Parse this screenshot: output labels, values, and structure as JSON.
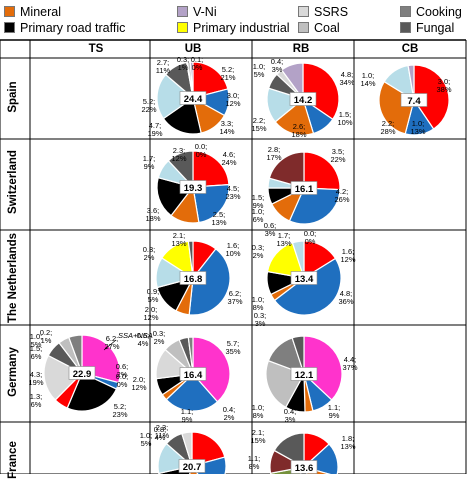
{
  "legend": [
    {
      "label": "Mineral",
      "color": "#e36c0a"
    },
    {
      "label": "V-Ni",
      "color": "#b3a2c7"
    },
    {
      "label": "SSRS",
      "color": "#d9d9d9"
    },
    {
      "label": "Cooking",
      "color": "#7f7f7f"
    },
    {
      "label": "Primary road traffic",
      "color": "#000000"
    },
    {
      "label": "Primary industrial",
      "color": "#ffff00"
    },
    {
      "label": "Coal",
      "color": "#bfbfbf"
    },
    {
      "label": "Fungal",
      "color": "#595959"
    }
  ],
  "columns": [
    "TS",
    "UB",
    "RB",
    "CB"
  ],
  "rows": [
    "Spain",
    "Switzerland",
    "The Netherlands",
    "Germany",
    "France"
  ],
  "annotation": "SSA+NSA",
  "chart_data": [
    {
      "type": "pie",
      "country": "Spain",
      "site": "UB",
      "center_label": "24.4",
      "slices": [
        {
          "value": 5.2,
          "color": "#ff0000"
        },
        {
          "value": 3.0,
          "color": "#1f6fbf"
        },
        {
          "value": 3.3,
          "color": "#e36c0a"
        },
        {
          "value": 4.7,
          "color": "#000000"
        },
        {
          "value": 5.2,
          "color": "#b7dde8"
        },
        {
          "value": 2.7,
          "color": "#595959"
        },
        {
          "value": 0.1,
          "color": "#d9d9d9"
        },
        {
          "value": 0.3,
          "color": "#bfbfbf"
        },
        {
          "value": 0.3,
          "color": "#b3a2c7"
        }
      ],
      "labels": [
        "0.3; 1%",
        "0.1; 0%",
        "2.7; 11%",
        "5.2; 21%",
        "3.0; 12%",
        "3.3; 14%",
        "4.7; 19%",
        "5.2; 22%"
      ]
    },
    {
      "type": "pie",
      "country": "Spain",
      "site": "RB",
      "center_label": "14.2",
      "slices": [
        {
          "value": 4.8,
          "color": "#ff0000"
        },
        {
          "value": 1.5,
          "color": "#1f6fbf"
        },
        {
          "value": 2.6,
          "color": "#e36c0a"
        },
        {
          "value": 2.2,
          "color": "#b7dde8"
        },
        {
          "value": 1.0,
          "color": "#595959"
        },
        {
          "value": 0.4,
          "color": "#d9d9d9"
        },
        {
          "value": 1.4,
          "color": "#b3a2c7"
        }
      ],
      "labels": [
        "1.0; 5%",
        "0.4; 3%",
        "4.8; 34%",
        "1.5; 10%",
        "2.6; 18%",
        "2.2; 15%"
      ]
    },
    {
      "type": "pie",
      "country": "Spain",
      "site": "CB",
      "center_label": "7.4",
      "slices": [
        {
          "value": 3.0,
          "color": "#ff0000"
        },
        {
          "value": 1.0,
          "color": "#1f6fbf"
        },
        {
          "value": 2.2,
          "color": "#e36c0a"
        },
        {
          "value": 1.0,
          "color": "#b7dde8"
        },
        {
          "value": 0.2,
          "color": "#b3a2c7"
        }
      ],
      "labels": [
        "3.0; 38%",
        "1.0; 13%",
        "2.2; 28%",
        "1.0; 14%"
      ]
    },
    {
      "type": "pie",
      "country": "Switzerland",
      "site": "UB",
      "center_label": "19.3",
      "slices": [
        {
          "value": 4.6,
          "color": "#ff0000"
        },
        {
          "value": 4.5,
          "color": "#1f6fbf"
        },
        {
          "value": 2.5,
          "color": "#e36c0a"
        },
        {
          "value": 3.6,
          "color": "#000000"
        },
        {
          "value": 1.7,
          "color": "#b7dde8"
        },
        {
          "value": 2.3,
          "color": "#595959"
        },
        {
          "value": 0.0,
          "color": "#d9d9d9"
        }
      ],
      "labels": [
        "1.7; 9%",
        "2.3; 12%",
        "0.0; 0%",
        "4.6; 24%",
        "4.5; 23%",
        "2.5; 13%",
        "3.6; 18%"
      ]
    },
    {
      "type": "pie",
      "country": "Switzerland",
      "site": "RB",
      "center_label": "16.1",
      "slices": [
        {
          "value": 3.5,
          "color": "#ff0000"
        },
        {
          "value": 4.2,
          "color": "#1f6fbf"
        },
        {
          "value": 1.5,
          "color": "#e36c0a"
        },
        {
          "value": 1.0,
          "color": "#000000"
        },
        {
          "value": 0.6,
          "color": "#b7dde8"
        },
        {
          "value": 2.8,
          "color": "#7f2b2b"
        }
      ],
      "labels": [
        "2.8; 17%",
        "3.5; 22%",
        "4.2; 26%",
        "1.5; 9%",
        "1.0; 6%",
        "0.6; 3%"
      ]
    },
    {
      "type": "pie",
      "country": "The Netherlands",
      "site": "UB",
      "center_label": "16.8",
      "slices": [
        {
          "value": 1.6,
          "color": "#ff0000"
        },
        {
          "value": 6.2,
          "color": "#1f6fbf"
        },
        {
          "value": 0.9,
          "color": "#e36c0a"
        },
        {
          "value": 2.0,
          "color": "#000000"
        },
        {
          "value": 2.0,
          "color": "#b7dde8"
        },
        {
          "value": 2.1,
          "color": "#ffff00"
        },
        {
          "value": 0.3,
          "color": "#595959"
        }
      ],
      "labels": [
        "2.1; 13%",
        "0.3; 2%",
        "1.6; 10%",
        "6.2; 37%",
        "0.9; 5%",
        "2.0; 12%"
      ]
    },
    {
      "type": "pie",
      "country": "The Netherlands",
      "site": "RB",
      "center_label": "13.4",
      "slices": [
        {
          "value": 1.6,
          "color": "#ff0000"
        },
        {
          "value": 4.8,
          "color": "#1f6fbf"
        },
        {
          "value": 0.3,
          "color": "#e36c0a"
        },
        {
          "value": 0.0,
          "color": "#d9d9d9"
        },
        {
          "value": 1.0,
          "color": "#000000"
        },
        {
          "value": 1.7,
          "color": "#ffff00"
        },
        {
          "value": 0.5,
          "color": "#b7dde8"
        }
      ],
      "labels": [
        "0.3; 2%",
        "1.7; 13%",
        "0.0; 0%",
        "1.6; 12%",
        "4.8; 36%",
        "1.0; 8%",
        "0.3; 3%"
      ]
    },
    {
      "type": "pie",
      "country": "Germany",
      "site": "TS",
      "center_label": "22.9",
      "slices": [
        {
          "value": 6.2,
          "color": "#ff33cc"
        },
        {
          "value": 0.6,
          "color": "#1f6fbf"
        },
        {
          "value": 0.0,
          "color": "#e36c0a"
        },
        {
          "value": 5.2,
          "color": "#000000"
        },
        {
          "value": 1.3,
          "color": "#ff0000"
        },
        {
          "value": 4.3,
          "color": "#d9d9d9"
        },
        {
          "value": 1.5,
          "color": "#595959"
        },
        {
          "value": 1.0,
          "color": "#bfbfbf"
        },
        {
          "value": 1.2,
          "color": "#7f7f7f"
        }
      ],
      "labels": [
        "1.0; 5%",
        "0.2; 1%",
        "1.5; 6%",
        "6.2; 27%",
        "0.6; 2%",
        "0.0; 0%",
        "5.2; 23%",
        "1.3; 6%",
        "4.3; 19%"
      ]
    },
    {
      "type": "pie",
      "country": "Germany",
      "site": "UB",
      "center_label": "16.4",
      "slices": [
        {
          "value": 5.7,
          "color": "#ff33cc"
        },
        {
          "value": 3.6,
          "color": "#1f6fbf"
        },
        {
          "value": 0.4,
          "color": "#e36c0a"
        },
        {
          "value": 1.1,
          "color": "#000000"
        },
        {
          "value": 2.0,
          "color": "#d9d9d9"
        },
        {
          "value": 1.1,
          "color": "#bfbfbf"
        },
        {
          "value": 0.6,
          "color": "#595959"
        },
        {
          "value": 0.3,
          "color": "#7f7f7f"
        }
      ],
      "labels": [
        "0.6; 4%",
        "0.3; 2%",
        "5.7; 35%",
        "1.1; 9%",
        "0.4; 2%",
        "2.0; 12%"
      ]
    },
    {
      "type": "pie",
      "country": "Germany",
      "site": "RB",
      "center_label": "12.1",
      "slices": [
        {
          "value": 4.4,
          "color": "#ff33cc"
        },
        {
          "value": 1.1,
          "color": "#1f6fbf"
        },
        {
          "value": 0.4,
          "color": "#e36c0a"
        },
        {
          "value": 1.0,
          "color": "#000000"
        },
        {
          "value": 2.7,
          "color": "#bfbfbf"
        },
        {
          "value": 1.7,
          "color": "#7f7f7f"
        },
        {
          "value": 0.6,
          "color": "#595959"
        }
      ],
      "labels": [
        "4.4; 37%",
        "1.1; 9%",
        "0.4; 3%",
        "1.0; 8%"
      ]
    },
    {
      "type": "pie",
      "country": "France",
      "site": "UB",
      "center_label": "20.7",
      "slices": [
        {
          "value": 4.3,
          "color": "#ff0000"
        },
        {
          "value": 4.0,
          "color": "#1f6fbf"
        },
        {
          "value": 3.0,
          "color": "#e36c0a"
        },
        {
          "value": 3.5,
          "color": "#000000"
        },
        {
          "value": 3.1,
          "color": "#b7dde8"
        },
        {
          "value": 1.8,
          "color": "#595959"
        },
        {
          "value": 1.0,
          "color": "#d9d9d9"
        }
      ],
      "labels": [
        "1.0; 5%",
        "0.8; 4%",
        "2.3; 11%"
      ]
    },
    {
      "type": "pie",
      "country": "France",
      "site": "RB",
      "center_label": "13.6",
      "slices": [
        {
          "value": 1.8,
          "color": "#ff0000"
        },
        {
          "value": 2.2,
          "color": "#1f6fbf"
        },
        {
          "value": 2.0,
          "color": "#e36c0a"
        },
        {
          "value": 1.8,
          "color": "#000000"
        },
        {
          "value": 2.0,
          "color": "#76923c"
        },
        {
          "value": 1.5,
          "color": "#7f2b2b"
        },
        {
          "value": 2.3,
          "color": "#595959"
        }
      ],
      "labels": [
        "1.8; 13%",
        "2.1; 15%",
        "1.1; 8%"
      ]
    }
  ]
}
